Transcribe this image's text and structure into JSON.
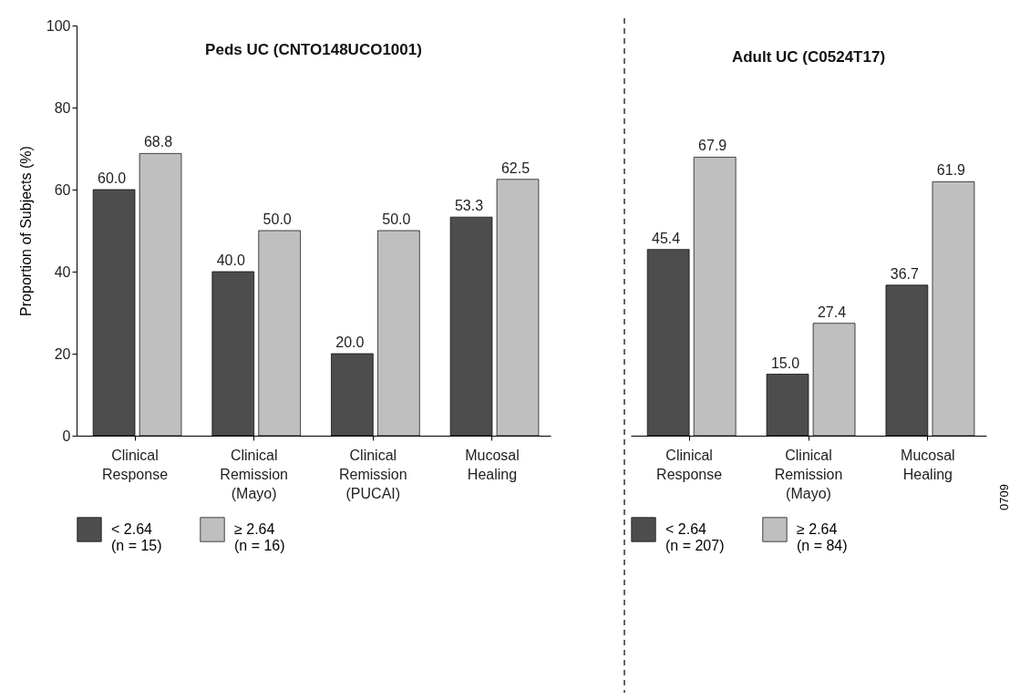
{
  "chart_data": [
    {
      "type": "bar",
      "title": "Peds UC (CNTO148UCO1001)",
      "ylabel": "Proportion of Subjects (%)",
      "categories": [
        "Clinical Response",
        "Clinical Remission (Mayo)",
        "Clinical Remission (PUCAI)",
        "Mucosal Healing"
      ],
      "series": [
        {
          "name": "< 2.64\n(n = 15)",
          "color": "#4d4d4d",
          "values": [
            60.0,
            40.0,
            20.0,
            53.3
          ],
          "value_labels": [
            "60.0",
            "40.0",
            "20.0",
            "53.3"
          ]
        },
        {
          "name": "≥ 2.64\n(n = 16)",
          "color": "#bfbfbf",
          "values": [
            68.8,
            50.0,
            50.0,
            62.5
          ],
          "value_labels": [
            "68.8",
            "50.0",
            "50.0",
            "62.5"
          ]
        }
      ],
      "ylim": [
        0,
        100
      ],
      "yticks": [
        0,
        20,
        40,
        60,
        80,
        100
      ],
      "legend": "bottom"
    },
    {
      "type": "bar",
      "title": "Adult UC (C0524T17)",
      "categories": [
        "Clinical Response",
        "Clinical Remission (Mayo)",
        "Mucosal Healing"
      ],
      "series": [
        {
          "name": "< 2.64\n(n = 207)",
          "color": "#4d4d4d",
          "values": [
            45.4,
            15.0,
            36.7
          ],
          "value_labels": [
            "45.4",
            "15.0",
            "36.7"
          ]
        },
        {
          "name": "≥ 2.64\n(n = 84)",
          "color": "#bfbfbf",
          "values": [
            67.9,
            27.4,
            61.9
          ],
          "value_labels": [
            "67.9",
            "27.4",
            "61.9"
          ]
        }
      ],
      "ylim": [
        0,
        100
      ],
      "yticks": [
        0,
        20,
        40,
        60,
        80,
        100
      ],
      "tick_labels": "x",
      "legend": "bottom",
      "annotations": [
        "0709"
      ]
    }
  ]
}
